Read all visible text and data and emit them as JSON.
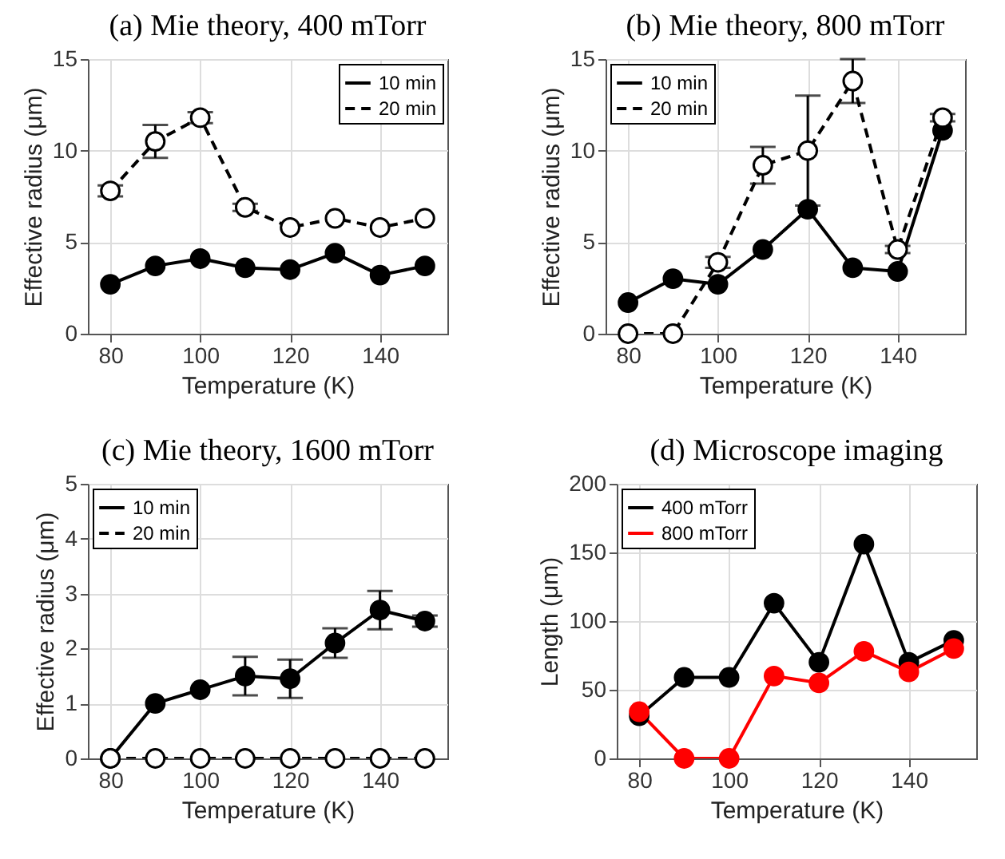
{
  "chart_data": [
    {
      "type": "line",
      "title": "(a)  Mie theory, 400 mTorr",
      "xlabel": "Temperature (K)",
      "ylabel": "Effective radius (μm)",
      "x": [
        80,
        90,
        100,
        110,
        120,
        130,
        140,
        150
      ],
      "xlim": [
        75,
        155
      ],
      "xticks": [
        80,
        100,
        120,
        140
      ],
      "ylim": [
        0,
        15
      ],
      "yticks": [
        0,
        5,
        10,
        15
      ],
      "grid": true,
      "legend": "top right",
      "marker": "circle",
      "series": [
        {
          "name": "10 min",
          "color": "#000000",
          "line_style": "solid",
          "values": [
            2.7,
            3.7,
            4.1,
            3.6,
            3.5,
            4.4,
            3.2,
            3.7
          ]
        },
        {
          "name": "20 min",
          "color": "#000000",
          "line_style": "dashed",
          "values": [
            7.8,
            10.5,
            11.8,
            6.9,
            5.8,
            6.3,
            5.8,
            6.3
          ],
          "errors": [
            0.3,
            0.9,
            0.3,
            0.2,
            null,
            null,
            null,
            null
          ]
        }
      ]
    },
    {
      "type": "line",
      "title": "(b)  Mie theory, 800 mTorr",
      "xlabel": "Temperature (K)",
      "ylabel": "Effective radius (μm)",
      "x": [
        80,
        90,
        100,
        110,
        120,
        130,
        140,
        150
      ],
      "xlim": [
        75,
        155
      ],
      "xticks": [
        80,
        100,
        120,
        140
      ],
      "ylim": [
        0,
        15
      ],
      "yticks": [
        0,
        5,
        10,
        15
      ],
      "grid": true,
      "legend": "top left",
      "marker": "circle",
      "series": [
        {
          "name": "10 min",
          "color": "#000000",
          "line_style": "solid",
          "values": [
            1.7,
            3.0,
            2.7,
            4.6,
            6.8,
            3.6,
            3.4,
            11.1
          ]
        },
        {
          "name": "20 min",
          "color": "#000000",
          "line_style": "dashed",
          "values": [
            0,
            0,
            3.9,
            9.2,
            10.0,
            13.8,
            4.6,
            11.8
          ],
          "errors": [
            null,
            null,
            0.3,
            1.0,
            3.0,
            1.2,
            0.2,
            0.2
          ]
        }
      ]
    },
    {
      "type": "line",
      "title": "(c)  Mie theory, 1600 mTorr",
      "xlabel": "Temperature (K)",
      "ylabel": "Effective radius (μm)",
      "x": [
        80,
        90,
        100,
        110,
        120,
        130,
        140,
        150
      ],
      "xlim": [
        75,
        155
      ],
      "xticks": [
        80,
        100,
        120,
        140
      ],
      "ylim": [
        0,
        5
      ],
      "yticks": [
        0,
        1,
        2,
        3,
        4,
        5
      ],
      "grid": true,
      "legend": "top left",
      "marker": "circle",
      "series": [
        {
          "name": "10 min",
          "color": "#000000",
          "line_style": "solid",
          "values": [
            0,
            1.0,
            1.25,
            1.5,
            1.45,
            2.1,
            2.7,
            2.5
          ],
          "errors": [
            null,
            null,
            null,
            0.35,
            0.35,
            0.27,
            0.35,
            0.1
          ]
        },
        {
          "name": "20 min",
          "color": "#000000",
          "line_style": "dashed",
          "values": [
            0,
            0,
            0,
            0,
            0,
            0,
            0,
            0
          ]
        }
      ]
    },
    {
      "type": "line",
      "title": "(d)  Microscope imaging",
      "xlabel": "Temperature (K)",
      "ylabel": "Length (μm)",
      "x": [
        80,
        90,
        100,
        110,
        120,
        130,
        140,
        150
      ],
      "xlim": [
        75,
        155
      ],
      "xticks": [
        80,
        100,
        120,
        140
      ],
      "ylim": [
        0,
        200
      ],
      "yticks": [
        0,
        50,
        100,
        150,
        200
      ],
      "grid": true,
      "legend": "top left",
      "marker": "circle",
      "series": [
        {
          "name": "400 mTorr",
          "color": "#000000",
          "line_style": "solid",
          "values": [
            31,
            59,
            59,
            113,
            70,
            156,
            70,
            86
          ]
        },
        {
          "name": "800 mTorr",
          "color": "#ff0000",
          "line_style": "solid",
          "values": [
            34,
            0,
            0,
            60,
            55,
            78,
            63,
            80
          ]
        }
      ]
    }
  ]
}
